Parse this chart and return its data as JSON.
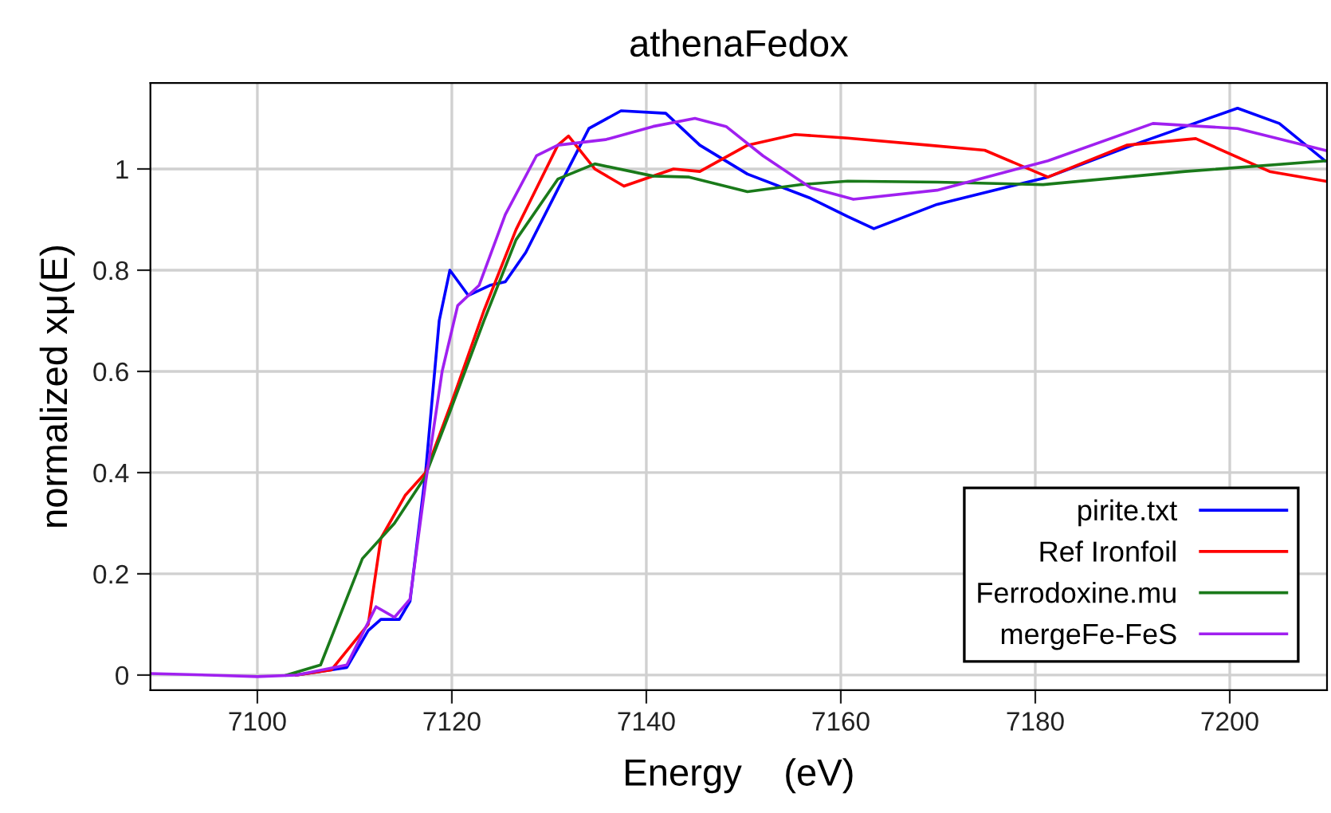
{
  "chart_data": {
    "type": "line",
    "title": "athenaFedox",
    "xlabel": "Energy    (eV)",
    "ylabel": "normalized xμ(E)",
    "xlim": [
      7089,
      7210
    ],
    "xticks": [
      7100,
      7120,
      7140,
      7160,
      7180,
      7200
    ],
    "ylim": [
      -0.03,
      1.17
    ],
    "yticks": [
      0,
      0.2,
      0.4,
      0.6,
      0.8,
      1
    ],
    "grid": true,
    "legend": "bottom right",
    "marker": "none",
    "line_style": "solid",
    "series": [
      {
        "name": "pirite.txt",
        "color": "#0000ff",
        "x": [
          7104,
          7109.2,
          7111.4,
          7112.7,
          7114.6,
          7115.7,
          7117.3,
          7118.7,
          7119.8,
          7121.7,
          7123.9,
          7125.5,
          7127.6,
          7130.9,
          7134.1,
          7137.4,
          7142,
          7145.5,
          7150.4,
          7156.9,
          7160.7,
          7163.4,
          7169.9,
          7181.3,
          7190,
          7200.8,
          7205.1,
          7209.8
        ],
        "values": [
          0.0,
          0.015,
          0.088,
          0.11,
          0.11,
          0.146,
          0.4,
          0.7,
          0.8,
          0.75,
          0.77,
          0.777,
          0.835,
          0.96,
          1.08,
          1.115,
          1.11,
          1.047,
          0.99,
          0.942,
          0.906,
          0.882,
          0.93,
          0.984,
          1.047,
          1.12,
          1.09,
          1.016
        ]
      },
      {
        "name": "Ref Ironfoil",
        "color": "#ff0000",
        "x": [
          7104,
          7107.6,
          7111.4,
          7112.7,
          7115.2,
          7117.3,
          7120,
          7123.3,
          7126.6,
          7130.9,
          7132,
          7134.7,
          7137.7,
          7142.8,
          7145.5,
          7150.4,
          7155.3,
          7160.7,
          7169,
          7174.8,
          7181.3,
          7189.4,
          7196.5,
          7204.1,
          7209.8
        ],
        "values": [
          0.0,
          0.01,
          0.1,
          0.27,
          0.355,
          0.4,
          0.54,
          0.72,
          0.88,
          1.047,
          1.065,
          1.0,
          0.966,
          1.0,
          0.995,
          1.047,
          1.068,
          1.061,
          1.047,
          1.037,
          0.984,
          1.047,
          1.06,
          0.995,
          0.976
        ]
      },
      {
        "name": "Ferrodoxine.mu",
        "color": "#1a7a1a",
        "x": [
          7103,
          7106.5,
          7110.8,
          7114.1,
          7117.2,
          7119.8,
          7123.3,
          7126.6,
          7130.9,
          7134.7,
          7140.7,
          7144.4,
          7150.4,
          7155.8,
          7160.7,
          7169.9,
          7180.8,
          7195.4,
          7209.8
        ],
        "values": [
          0.0,
          0.02,
          0.23,
          0.3,
          0.39,
          0.52,
          0.7,
          0.86,
          0.98,
          1.01,
          0.986,
          0.984,
          0.955,
          0.969,
          0.976,
          0.974,
          0.969,
          0.995,
          1.016
        ]
      },
      {
        "name": "mergeFe-FeS",
        "color": "#a020f0",
        "x": [
          7089,
          7095,
          7100,
          7104,
          7109.2,
          7112.2,
          7114.1,
          7115.7,
          7117.3,
          7119,
          7120.6,
          7122.8,
          7125.5,
          7128.7,
          7130.9,
          7135.8,
          7140.7,
          7145,
          7148.2,
          7152,
          7156.9,
          7161.3,
          7169.9,
          7181.3,
          7192.1,
          7200.8,
          7209.8
        ],
        "values": [
          0.003,
          0.0,
          -0.003,
          0.0,
          0.02,
          0.135,
          0.114,
          0.15,
          0.38,
          0.6,
          0.73,
          0.77,
          0.91,
          1.026,
          1.047,
          1.058,
          1.084,
          1.1,
          1.084,
          1.026,
          0.963,
          0.94,
          0.958,
          1.016,
          1.09,
          1.08,
          1.037
        ]
      }
    ]
  }
}
